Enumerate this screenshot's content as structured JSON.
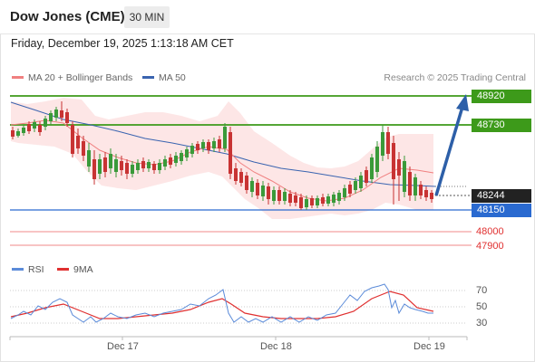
{
  "header": {
    "title": "Dow Jones (CME)",
    "timeframe": "30 MIN"
  },
  "datetime": "Friday, December 19, 2025 1:13:18 AM CET",
  "legend": {
    "ma20_label": "MA 20 + Bollinger Bands",
    "ma50_label": "MA 50",
    "research": "Research © 2025 Trading Central"
  },
  "colors": {
    "up": "#3a9a3a",
    "down": "#c83333",
    "ma20": "#f08080",
    "bollinger_fill": "#fde2e2",
    "ma50": "#3a64b0",
    "resistance": "#3d9a1a",
    "support": "#2a6ad0",
    "target": "#e04040",
    "rsi": "#5b8bd9",
    "rsi_ma": "#e03030",
    "arrow": "#2d5fa8"
  },
  "price_levels": {
    "r2": "48920",
    "r1": "48730",
    "last": "48244",
    "s1": "48150",
    "s2": "48000",
    "s3": "47900"
  },
  "rsi": {
    "label": "RSI",
    "ma_label": "9MA",
    "ticks": [
      "70",
      "50",
      "30"
    ]
  },
  "x_axis": {
    "dates": [
      "Dec 17",
      "Dec 18",
      "Dec 19"
    ]
  }
}
